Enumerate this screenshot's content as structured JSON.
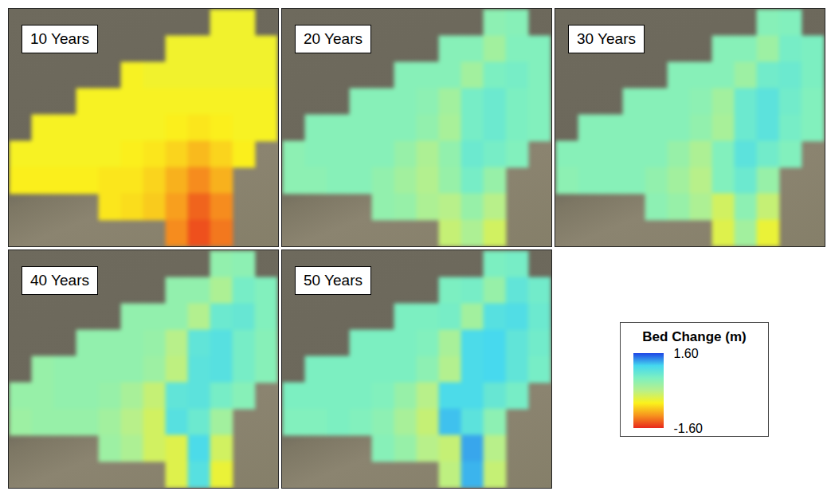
{
  "chart_data": {
    "type": "heatmap",
    "panels": [
      {
        "title": "10 Years",
        "cells": [
          [
            null,
            null,
            null,
            null,
            null,
            null,
            null,
            null,
            null,
            -0.45,
            -0.45,
            null
          ],
          [
            null,
            null,
            null,
            null,
            null,
            null,
            null,
            -0.45,
            -0.45,
            -0.45,
            -0.45,
            -0.45
          ],
          [
            null,
            null,
            null,
            null,
            null,
            -0.5,
            -0.45,
            -0.45,
            -0.45,
            -0.45,
            -0.45,
            -0.45
          ],
          [
            null,
            null,
            null,
            -0.5,
            -0.5,
            -0.5,
            -0.5,
            -0.5,
            -0.5,
            -0.5,
            -0.5,
            -0.5
          ],
          [
            null,
            -0.5,
            -0.5,
            -0.5,
            -0.5,
            -0.5,
            -0.5,
            -0.55,
            -0.6,
            -0.55,
            -0.5,
            -0.5
          ],
          [
            -0.5,
            -0.5,
            -0.5,
            -0.5,
            -0.5,
            -0.55,
            -0.6,
            -0.7,
            -0.85,
            -0.7,
            -0.55,
            null
          ],
          [
            -0.55,
            -0.55,
            -0.55,
            -0.55,
            -0.6,
            -0.6,
            -0.7,
            -0.9,
            -1.1,
            -0.9,
            null,
            null
          ],
          [
            null,
            null,
            null,
            null,
            -0.6,
            -0.65,
            -0.75,
            -1.0,
            -1.3,
            -1.1,
            null,
            null
          ],
          [
            null,
            null,
            null,
            null,
            null,
            null,
            null,
            -1.1,
            -1.4,
            -1.2,
            null,
            null
          ]
        ]
      },
      {
        "title": "20 Years",
        "cells": [
          [
            null,
            null,
            null,
            null,
            null,
            null,
            null,
            null,
            null,
            0.4,
            0.45,
            null
          ],
          [
            null,
            null,
            null,
            null,
            null,
            null,
            null,
            0.45,
            0.45,
            0.2,
            0.5,
            0.5
          ],
          [
            null,
            null,
            null,
            null,
            null,
            0.45,
            0.45,
            0.45,
            0.2,
            0.55,
            0.6,
            0.5
          ],
          [
            null,
            null,
            null,
            0.45,
            0.45,
            0.45,
            0.4,
            0.2,
            0.6,
            0.7,
            0.55,
            0.5
          ],
          [
            null,
            0.45,
            0.45,
            0.45,
            0.45,
            0.45,
            0.35,
            0.15,
            0.6,
            0.7,
            0.55,
            0.5
          ],
          [
            0.4,
            0.45,
            0.45,
            0.45,
            0.45,
            0.3,
            0.1,
            0.35,
            0.7,
            0.6,
            0.5,
            null
          ],
          [
            0.4,
            0.4,
            0.45,
            0.45,
            0.35,
            0.2,
            0.05,
            0.3,
            0.6,
            0.3,
            null,
            null
          ],
          [
            null,
            null,
            null,
            null,
            0.35,
            0.3,
            0.1,
            0.0,
            0.3,
            0.0,
            null,
            null
          ],
          [
            null,
            null,
            null,
            null,
            null,
            null,
            null,
            -0.1,
            0.1,
            -0.2,
            null,
            null
          ]
        ]
      },
      {
        "title": "30 Years",
        "cells": [
          [
            null,
            null,
            null,
            null,
            null,
            null,
            null,
            null,
            null,
            0.45,
            0.5,
            null
          ],
          [
            null,
            null,
            null,
            null,
            null,
            null,
            null,
            0.45,
            0.45,
            0.25,
            0.6,
            0.55
          ],
          [
            null,
            null,
            null,
            null,
            null,
            0.45,
            0.45,
            0.45,
            0.25,
            0.65,
            0.7,
            0.55
          ],
          [
            null,
            null,
            null,
            0.45,
            0.45,
            0.45,
            0.4,
            0.2,
            0.7,
            0.85,
            0.65,
            0.5
          ],
          [
            null,
            0.45,
            0.45,
            0.45,
            0.45,
            0.45,
            0.35,
            0.15,
            0.7,
            0.85,
            0.6,
            0.5
          ],
          [
            0.45,
            0.45,
            0.45,
            0.45,
            0.45,
            0.3,
            0.1,
            0.5,
            0.85,
            0.65,
            0.5,
            null
          ],
          [
            0.4,
            0.45,
            0.45,
            0.45,
            0.35,
            0.2,
            0.0,
            0.5,
            0.7,
            0.3,
            null,
            null
          ],
          [
            null,
            null,
            null,
            null,
            0.4,
            0.3,
            0.1,
            -0.2,
            0.4,
            -0.1,
            null,
            null
          ],
          [
            null,
            null,
            null,
            null,
            null,
            null,
            null,
            -0.3,
            0.2,
            -0.4,
            null,
            null
          ]
        ]
      },
      {
        "title": "40 Years",
        "cells": [
          [
            null,
            null,
            null,
            null,
            null,
            null,
            null,
            null,
            null,
            0.35,
            0.4,
            null
          ],
          [
            null,
            null,
            null,
            null,
            null,
            null,
            null,
            0.35,
            0.35,
            0.1,
            0.6,
            0.5
          ],
          [
            null,
            null,
            null,
            null,
            null,
            0.35,
            0.35,
            0.35,
            0.05,
            0.7,
            0.75,
            0.5
          ],
          [
            null,
            null,
            null,
            0.35,
            0.35,
            0.35,
            0.3,
            0.0,
            0.8,
            0.9,
            0.6,
            0.45
          ],
          [
            null,
            0.3,
            0.35,
            0.35,
            0.35,
            0.35,
            0.25,
            -0.05,
            0.85,
            0.9,
            0.6,
            0.45
          ],
          [
            0.3,
            0.3,
            0.35,
            0.35,
            0.3,
            0.15,
            -0.1,
            0.8,
            0.85,
            0.6,
            0.45,
            null
          ],
          [
            0.25,
            0.3,
            0.3,
            0.3,
            0.2,
            0.0,
            -0.2,
            0.9,
            0.7,
            0.2,
            null,
            null
          ],
          [
            null,
            null,
            null,
            null,
            0.25,
            0.1,
            -0.2,
            -0.3,
            1.0,
            -0.2,
            null,
            null
          ],
          [
            null,
            null,
            null,
            null,
            null,
            null,
            null,
            -0.3,
            0.9,
            -0.4,
            null,
            null
          ]
        ]
      },
      {
        "title": "50 Years",
        "cells": [
          [
            null,
            null,
            null,
            null,
            null,
            null,
            null,
            null,
            null,
            0.55,
            0.6,
            null
          ],
          [
            null,
            null,
            null,
            null,
            null,
            null,
            null,
            0.55,
            0.6,
            0.3,
            0.8,
            0.65
          ],
          [
            null,
            null,
            null,
            null,
            null,
            0.55,
            0.55,
            0.6,
            0.2,
            0.9,
            0.95,
            0.7
          ],
          [
            null,
            null,
            null,
            0.55,
            0.55,
            0.55,
            0.5,
            0.15,
            1.0,
            1.05,
            0.8,
            0.65
          ],
          [
            null,
            0.55,
            0.55,
            0.55,
            0.55,
            0.55,
            0.4,
            0.05,
            1.0,
            1.05,
            0.8,
            0.6
          ],
          [
            0.55,
            0.55,
            0.55,
            0.55,
            0.5,
            0.3,
            0.0,
            1.0,
            1.0,
            0.75,
            0.6,
            null
          ],
          [
            0.5,
            0.5,
            0.55,
            0.5,
            0.4,
            0.15,
            -0.1,
            1.15,
            0.85,
            0.4,
            null,
            null
          ],
          [
            null,
            null,
            null,
            null,
            0.45,
            0.3,
            0.0,
            -0.1,
            1.25,
            0.0,
            null,
            null
          ],
          [
            null,
            null,
            null,
            null,
            null,
            null,
            null,
            -0.05,
            1.2,
            -0.1,
            null,
            null
          ]
        ]
      }
    ],
    "colorbar": {
      "label": "Bed Change (m)",
      "range": [
        -1.6,
        1.6
      ],
      "ticks": [
        {
          "value": 1.6,
          "label": "1.60"
        },
        {
          "value": -1.6,
          "label": "-1.60"
        }
      ],
      "colors": [
        "#e8281c",
        "#f7931e",
        "#fbf21c",
        "#b8f08a",
        "#7ef0c0",
        "#45d8ef",
        "#1e46e6"
      ]
    }
  }
}
